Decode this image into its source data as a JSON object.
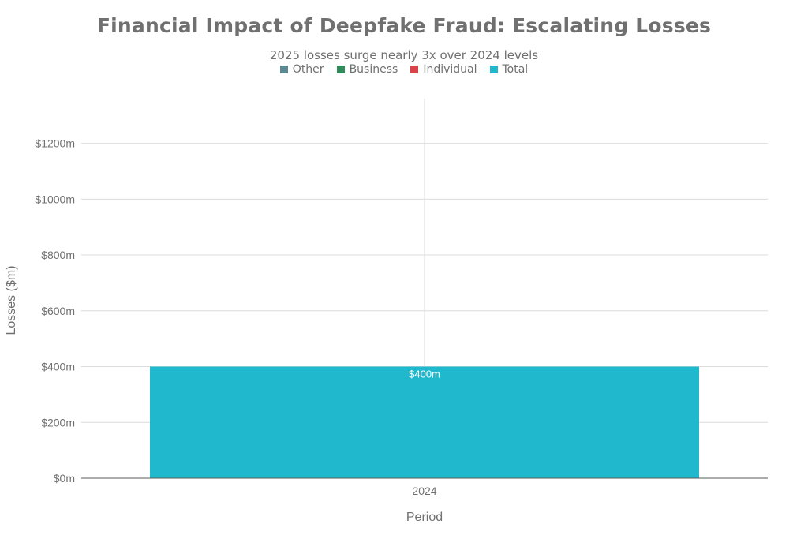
{
  "title": "Financial Impact of Deepfake Fraud: Escalating Losses",
  "subtitle": "2025 losses surge nearly 3x over 2024 levels",
  "legend": [
    {
      "name": "Other",
      "color": "#5e8a93"
    },
    {
      "name": "Business",
      "color": "#2e8b5a"
    },
    {
      "name": "Individual",
      "color": "#d9434b"
    },
    {
      "name": "Total",
      "color": "#1fb8cd"
    }
  ],
  "chart_data": {
    "type": "bar",
    "title": "Financial Impact of Deepfake Fraud: Escalating Losses",
    "subtitle": "2025 losses surge nearly 3x over 2024 levels",
    "xlabel": "Period",
    "ylabel": "Losses ($m)",
    "categories": [
      "2024"
    ],
    "series": [
      {
        "name": "Total",
        "values": [
          400
        ],
        "color": "#1fb8cd",
        "data_labels": [
          "$400m"
        ]
      }
    ],
    "legend_entries": [
      "Other",
      "Business",
      "Individual",
      "Total"
    ],
    "legend_placement": "top-center",
    "ylim": [
      0,
      1360
    ],
    "yticks": [
      0,
      200,
      400,
      600,
      800,
      1000,
      1200
    ],
    "ytick_labels": [
      "$0m",
      "$200m",
      "$400m",
      "$600m",
      "$800m",
      "$1000m",
      "$1200m"
    ],
    "grid": true
  }
}
